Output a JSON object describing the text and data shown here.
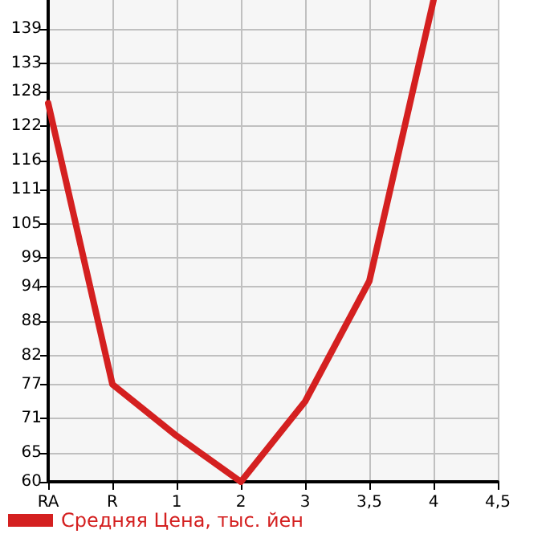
{
  "chart_data": {
    "type": "line",
    "categories": [
      "RA",
      "R",
      "1",
      "2",
      "3",
      "3,5",
      "4",
      "4,5"
    ],
    "series": [
      {
        "name": "Средняя Цена, тыс. йен",
        "color": "#d42020",
        "values": [
          126,
          77,
          68,
          60,
          74,
          95,
          144,
          null
        ]
      }
    ],
    "ylim": [
      60,
      144
    ],
    "yticks": [
      60,
      65,
      71,
      77,
      82,
      88,
      94,
      99,
      105,
      111,
      116,
      122,
      128,
      133,
      139
    ],
    "grid": true,
    "legend": "bottom left",
    "marker": "none",
    "line_style": "solid"
  }
}
